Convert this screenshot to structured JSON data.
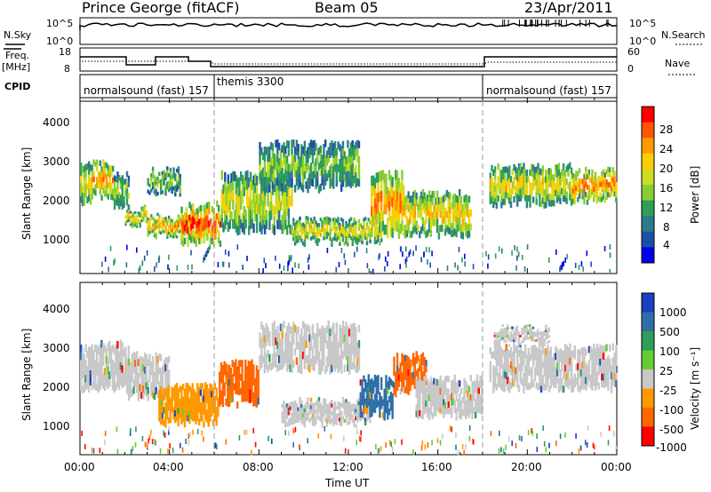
{
  "header": {
    "station": "Prince George (fitACF)",
    "beam": "Beam 05",
    "date": "23/Apr/2011"
  },
  "left_labels": {
    "nsky": "N.Sky",
    "freq_line1": "Freq.",
    "freq_line2": "[MHz]",
    "cpid": "CPID"
  },
  "right_labels": {
    "nsearch": "N.Search",
    "nave": "Nave"
  },
  "top_axes": {
    "nsky_ticks": [
      "10^5",
      "10^0"
    ],
    "nsearch_ticks": [
      "10^5",
      "10^0"
    ],
    "freq_ticks": [
      "18",
      "8"
    ],
    "nave_ticks": [
      "60",
      "0"
    ]
  },
  "cpid_segments": [
    {
      "label": "normalsound (fast) 157",
      "start_h": 0,
      "end_h": 6
    },
    {
      "label": "themis 3300",
      "start_h": 6,
      "end_h": 18
    },
    {
      "label": "normalsound (fast) 157",
      "start_h": 18,
      "end_h": 24
    }
  ],
  "chart_data": [
    {
      "type": "heatmap",
      "title": "",
      "xlabel": "Time UT",
      "ylabel": "Slant Range [km]",
      "xlim": [
        0,
        24
      ],
      "ylim": [
        0,
        4500
      ],
      "x_ticks": [
        "00:00",
        "04:00",
        "08:00",
        "12:00",
        "16:00",
        "20:00",
        "00:00"
      ],
      "y_ticks": [
        "1000",
        "2000",
        "3000",
        "4000"
      ],
      "colorbar": {
        "label": "Power [dB]",
        "ticks": [
          "28",
          "24",
          "20",
          "16",
          "12",
          "8",
          "4"
        ],
        "colors": [
          "#ff0000",
          "#ff5500",
          "#ff9900",
          "#ffcc00",
          "#ccdd22",
          "#88cc33",
          "#2e9e5a",
          "#2f7a8a",
          "#1c4fa8",
          "#0000ee"
        ]
      },
      "series": [
        {
          "start_h": 0.0,
          "end_h": 0.5,
          "r_lo": 1850,
          "r_hi": 2900,
          "level": 0.55
        },
        {
          "start_h": 0.5,
          "end_h": 1.5,
          "r_lo": 2000,
          "r_hi": 2900,
          "level": 0.7
        },
        {
          "start_h": 1.5,
          "end_h": 2.2,
          "r_lo": 1700,
          "r_hi": 2600,
          "level": 0.45
        },
        {
          "start_h": 2.0,
          "end_h": 3.0,
          "r_lo": 1300,
          "r_hi": 1700,
          "level": 0.6
        },
        {
          "start_h": 3.0,
          "end_h": 4.5,
          "r_lo": 2100,
          "r_hi": 2700,
          "level": 0.4
        },
        {
          "start_h": 3.0,
          "end_h": 5.0,
          "r_lo": 1000,
          "r_hi": 1500,
          "level": 0.65
        },
        {
          "start_h": 4.5,
          "end_h": 6.3,
          "r_lo": 800,
          "r_hi": 1800,
          "level": 0.8
        },
        {
          "start_h": 6.3,
          "end_h": 9.5,
          "r_lo": 1100,
          "r_hi": 2600,
          "level": 0.5
        },
        {
          "start_h": 8.0,
          "end_h": 12.5,
          "r_lo": 2200,
          "r_hi": 3400,
          "level": 0.4
        },
        {
          "start_h": 9.5,
          "end_h": 13.5,
          "r_lo": 800,
          "r_hi": 1400,
          "level": 0.55
        },
        {
          "start_h": 13.0,
          "end_h": 14.5,
          "r_lo": 1000,
          "r_hi": 2600,
          "level": 0.7
        },
        {
          "start_h": 14.5,
          "end_h": 17.5,
          "r_lo": 1000,
          "r_hi": 2100,
          "level": 0.6
        },
        {
          "start_h": 18.3,
          "end_h": 22.0,
          "r_lo": 1800,
          "r_hi": 2800,
          "level": 0.55
        },
        {
          "start_h": 22.0,
          "end_h": 24.0,
          "r_lo": 1900,
          "r_hi": 2700,
          "level": 0.7
        }
      ]
    },
    {
      "type": "heatmap",
      "title": "",
      "xlabel": "Time UT",
      "ylabel": "Slant Range [km]",
      "xlim": [
        0,
        24
      ],
      "ylim": [
        0,
        4500
      ],
      "x_ticks": [
        "00:00",
        "04:00",
        "08:00",
        "12:00",
        "16:00",
        "20:00",
        "00:00"
      ],
      "y_ticks": [
        "1000",
        "2000",
        "3000",
        "4000"
      ],
      "colorbar": {
        "label": "Velocity [m s⁻¹]",
        "ticks": [
          "1000",
          "500",
          "100",
          "25",
          "-25",
          "-100",
          "-500",
          "-1000"
        ],
        "colors": [
          "#1c3fbf",
          "#2f6fa8",
          "#2e9e5a",
          "#66cc33",
          "#c8c8c8",
          "#ff9900",
          "#ff6600",
          "#ff0000"
        ]
      },
      "series": [
        {
          "start_h": 0.0,
          "end_h": 2.2,
          "r_lo": 1700,
          "r_hi": 2900,
          "color": "#c8c8c8"
        },
        {
          "start_h": 2.0,
          "end_h": 4.0,
          "r_lo": 1500,
          "r_hi": 2600,
          "color": "#c8c8c8"
        },
        {
          "start_h": 3.5,
          "end_h": 6.2,
          "r_lo": 800,
          "r_hi": 1800,
          "color": "#ff9900"
        },
        {
          "start_h": 6.2,
          "end_h": 8.0,
          "r_lo": 1300,
          "r_hi": 2400,
          "color": "#ff6600"
        },
        {
          "start_h": 8.0,
          "end_h": 12.5,
          "r_lo": 2200,
          "r_hi": 3400,
          "color": "#c8c8c8"
        },
        {
          "start_h": 9.0,
          "end_h": 13.0,
          "r_lo": 800,
          "r_hi": 1400,
          "color": "#c8c8c8"
        },
        {
          "start_h": 12.5,
          "end_h": 14.0,
          "r_lo": 1000,
          "r_hi": 2000,
          "color": "#2f6fa8"
        },
        {
          "start_h": 14.0,
          "end_h": 15.5,
          "r_lo": 1600,
          "r_hi": 2600,
          "color": "#ff6600"
        },
        {
          "start_h": 15.0,
          "end_h": 18.0,
          "r_lo": 1000,
          "r_hi": 2000,
          "color": "#c8c8c8"
        },
        {
          "start_h": 18.3,
          "end_h": 24.0,
          "r_lo": 1700,
          "r_hi": 2800,
          "color": "#c8c8c8"
        },
        {
          "start_h": 18.5,
          "end_h": 21.0,
          "r_lo": 2900,
          "r_hi": 3300,
          "color": "#c8c8c8"
        }
      ]
    }
  ]
}
